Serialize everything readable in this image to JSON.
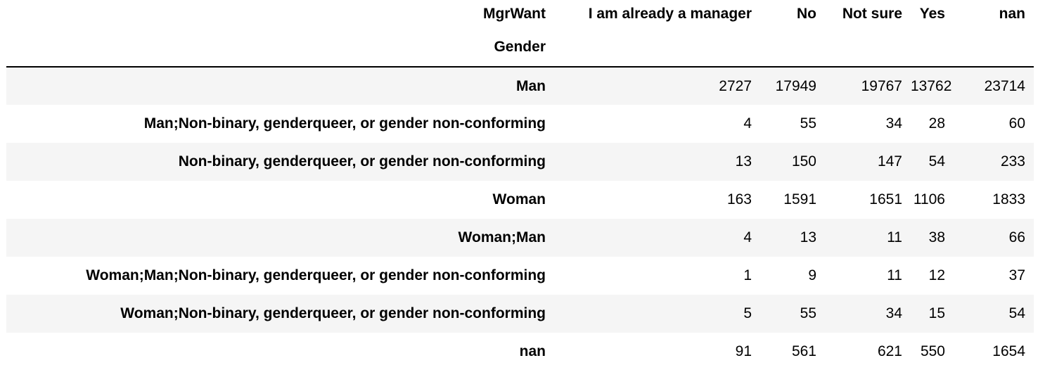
{
  "table": {
    "columns_name": "MgrWant",
    "index_name": "Gender",
    "columns": [
      "I am already a manager",
      "No",
      "Not sure",
      "Yes",
      "nan"
    ],
    "rows": [
      {
        "label": "Man",
        "values": [
          "2727",
          "17949",
          "19767",
          "13762",
          "23714"
        ]
      },
      {
        "label": "Man;Non-binary, genderqueer, or gender non-conforming",
        "values": [
          "4",
          "55",
          "34",
          "28",
          "60"
        ]
      },
      {
        "label": "Non-binary, genderqueer, or gender non-conforming",
        "values": [
          "13",
          "150",
          "147",
          "54",
          "233"
        ]
      },
      {
        "label": "Woman",
        "values": [
          "163",
          "1591",
          "1651",
          "1106",
          "1833"
        ]
      },
      {
        "label": "Woman;Man",
        "values": [
          "4",
          "13",
          "11",
          "38",
          "66"
        ]
      },
      {
        "label": "Woman;Man;Non-binary, genderqueer, or gender non-conforming",
        "values": [
          "1",
          "9",
          "11",
          "12",
          "37"
        ]
      },
      {
        "label": "Woman;Non-binary, genderqueer, or gender non-conforming",
        "values": [
          "5",
          "55",
          "34",
          "15",
          "54"
        ]
      },
      {
        "label": "nan",
        "values": [
          "91",
          "561",
          "621",
          "550",
          "1654"
        ]
      }
    ]
  }
}
